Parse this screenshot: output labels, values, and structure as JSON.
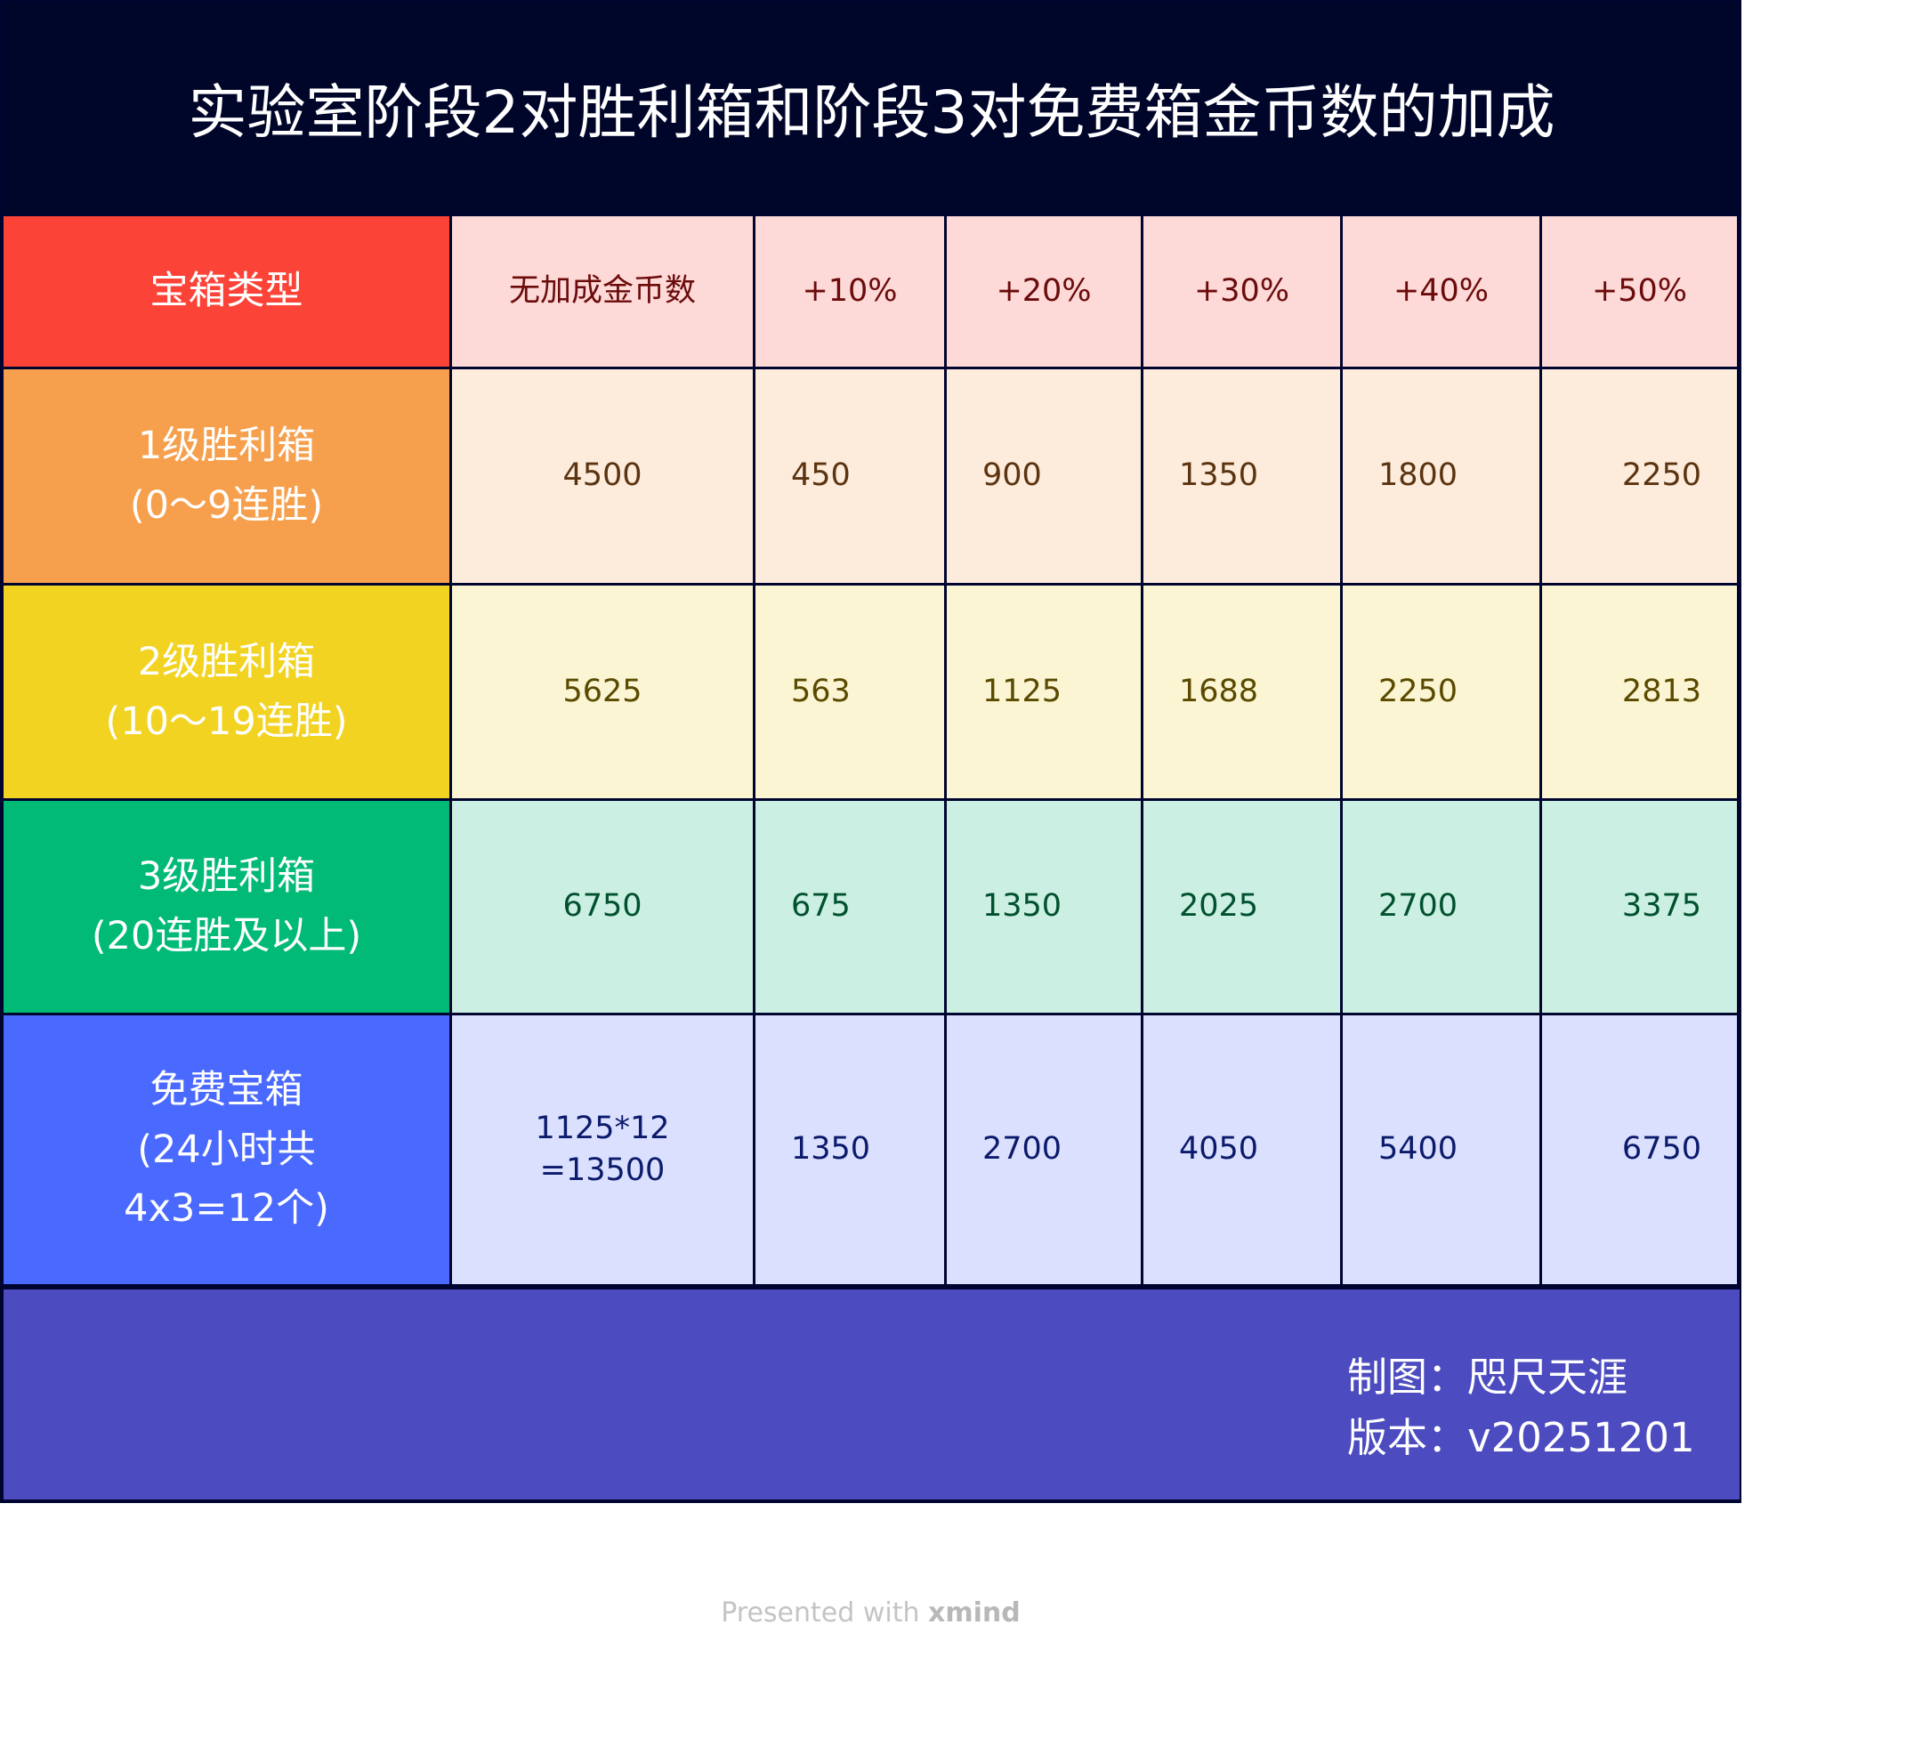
{
  "title": "实验室阶段2对胜利箱和阶段3对免费箱金币数的加成",
  "header": {
    "label": "宝箱类型",
    "columns": [
      "无加成金币数",
      "+10%",
      "+20%",
      "+30%",
      "+40%",
      "+50%"
    ]
  },
  "rows": [
    {
      "label": "1级胜利箱\n(0～9连胜)",
      "values": [
        "4500",
        "450",
        "900",
        "1350",
        "1800",
        "2250"
      ]
    },
    {
      "label": "2级胜利箱\n(10～19连胜)",
      "values": [
        "5625",
        "563",
        "1125",
        "1688",
        "2250",
        "2813"
      ]
    },
    {
      "label": "3级胜利箱\n(20连胜及以上)",
      "values": [
        "6750",
        "675",
        "1350",
        "2025",
        "2700",
        "3375"
      ]
    },
    {
      "label": "免费宝箱\n(24小时共\n4x3=12个)",
      "values": [
        "1125*12\n=13500",
        "1350",
        "2700",
        "4050",
        "5400",
        "6750"
      ]
    }
  ],
  "footer": {
    "author": "制图：咫尺天涯",
    "version": "版本：v20251201"
  },
  "credit": {
    "prefix": "Presented with ",
    "brand": "xmind"
  },
  "colors": {
    "title_bg": "#00052a",
    "header_label": "#fc4338",
    "header_cells": "#fdd9d7",
    "header_text": "#6b0b0b",
    "row1_label": "#f6a04d",
    "row1_cells": "#fdebdc",
    "row1_text": "#5a3410",
    "row2_label": "#f2d321",
    "row2_cells": "#fbf5d3",
    "row2_text": "#5a4a00",
    "row3_label": "#00ba76",
    "row3_cells": "#cbefe2",
    "row3_text": "#00512f",
    "row4_label": "#4a69fe",
    "row4_cells": "#dae0fe",
    "row4_text": "#0c1a6b",
    "footer_bg": "#4c4bbf"
  }
}
